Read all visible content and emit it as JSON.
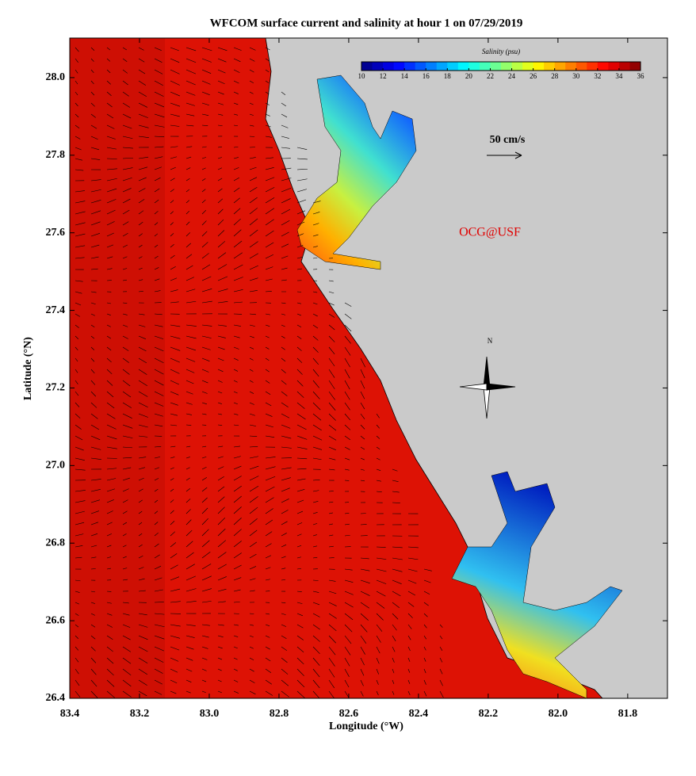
{
  "chart_data": {
    "type": "map",
    "title": "WFCOM surface current and salinity at hour 1 on 07/29/2019",
    "x_label": "Longitude (°W)",
    "y_label": "Latitude (°N)",
    "xlim": [
      83.4,
      81.686
    ],
    "ylim": [
      26.4,
      28.102
    ],
    "xticks": [
      83.4,
      83.2,
      {
        "value": 83.0,
        "label": "83.0"
      },
      82.8,
      82.6,
      82.4,
      82.2,
      {
        "value": 82.0,
        "label": "82.0"
      },
      81.8
    ],
    "yticks": [
      26.4,
      26.6,
      26.8,
      {
        "value": 27.0,
        "label": "27.0"
      },
      27.2,
      27.4,
      27.6,
      27.8,
      {
        "value": 28.0,
        "label": "28.0"
      }
    ],
    "colorbar": {
      "label": "Salinity (psu)",
      "lim": [
        10,
        36
      ],
      "ticks": [
        10,
        12,
        14,
        16,
        18,
        20,
        22,
        24,
        26,
        28,
        30,
        32,
        34,
        36
      ]
    },
    "scale_label": "50 cm/s",
    "credit": "OCG@USF",
    "compass_label": "N"
  }
}
